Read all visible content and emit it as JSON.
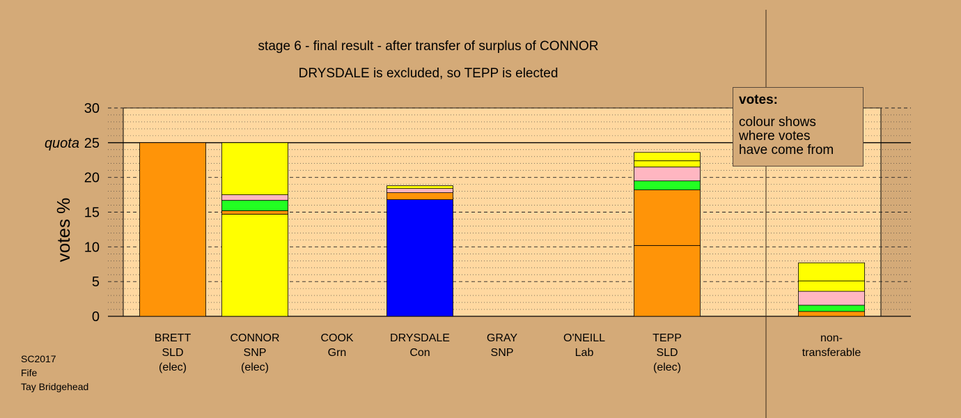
{
  "chart_data": {
    "type": "bar",
    "title": "stage 6 - final result - after transfer of surplus of CONNOR",
    "subtitle": "DRYSDALE is excluded, so TEPP is elected",
    "ylabel": "votes %",
    "ylim": [
      0,
      30
    ],
    "yticks": [
      "0",
      "5",
      "10",
      "15",
      "20",
      "25",
      "30"
    ],
    "quota_label": "quota",
    "quota": 25,
    "grid": true,
    "legend_position": "top-right",
    "colors": {
      "SLD": "#ff9408",
      "SNP": "#ffff00",
      "Con": "#0000ff",
      "Grn": "#22ff22",
      "Lab": "#ffb6c1",
      "plot_bg": "#ffd8a0",
      "page_bg": "#d4aa78"
    },
    "candidates": [
      {
        "name": "BRETT",
        "party": "SLD",
        "status": "(elec)",
        "segments": [
          {
            "from": "SLD",
            "value": 25.0
          }
        ]
      },
      {
        "name": "CONNOR",
        "party": "SNP",
        "status": "(elec)",
        "segments": [
          {
            "from": "SNP",
            "value": 14.7
          },
          {
            "from": "SLD",
            "value": 0.5
          },
          {
            "from": "Grn",
            "value": 1.5
          },
          {
            "from": "Lab",
            "value": 0.8
          },
          {
            "from": "SNP",
            "value": 7.5
          }
        ]
      },
      {
        "name": "COOK",
        "party": "Grn",
        "status": "",
        "segments": []
      },
      {
        "name": "DRYSDALE",
        "party": "Con",
        "status": "",
        "segments": [
          {
            "from": "Con",
            "value": 16.8
          },
          {
            "from": "SLD",
            "value": 1.0
          },
          {
            "from": "Lab",
            "value": 0.6
          },
          {
            "from": "SNP",
            "value": 0.4
          }
        ]
      },
      {
        "name": "GRAY",
        "party": "SNP",
        "status": "",
        "segments": []
      },
      {
        "name": "O'NEILL",
        "party": "Lab",
        "status": "",
        "segments": []
      },
      {
        "name": "TEPP",
        "party": "SLD",
        "status": "(elec)",
        "segments": [
          {
            "from": "SLD",
            "value": 10.2
          },
          {
            "from": "SLD",
            "value": 8.0
          },
          {
            "from": "Grn",
            "value": 1.3
          },
          {
            "from": "Lab",
            "value": 2.0
          },
          {
            "from": "SNP",
            "value": 0.9
          },
          {
            "from": "SNP",
            "value": 1.2
          }
        ]
      }
    ],
    "nontransferable": {
      "label_line1": "non-",
      "label_line2": "transferable",
      "segments": [
        {
          "from": "SLD",
          "value": 0.7
        },
        {
          "from": "Grn",
          "value": 0.9
        },
        {
          "from": "Lab",
          "value": 2.0
        },
        {
          "from": "SNP",
          "value": 1.5
        },
        {
          "from": "SNP",
          "value": 2.6
        }
      ]
    }
  },
  "legend": {
    "title": "votes:",
    "line1": "colour shows",
    "line2": "where votes",
    "line3": "have come from"
  },
  "footer": {
    "line1": "SC2017",
    "line2": "Fife",
    "line3": "Tay Bridgehead"
  }
}
